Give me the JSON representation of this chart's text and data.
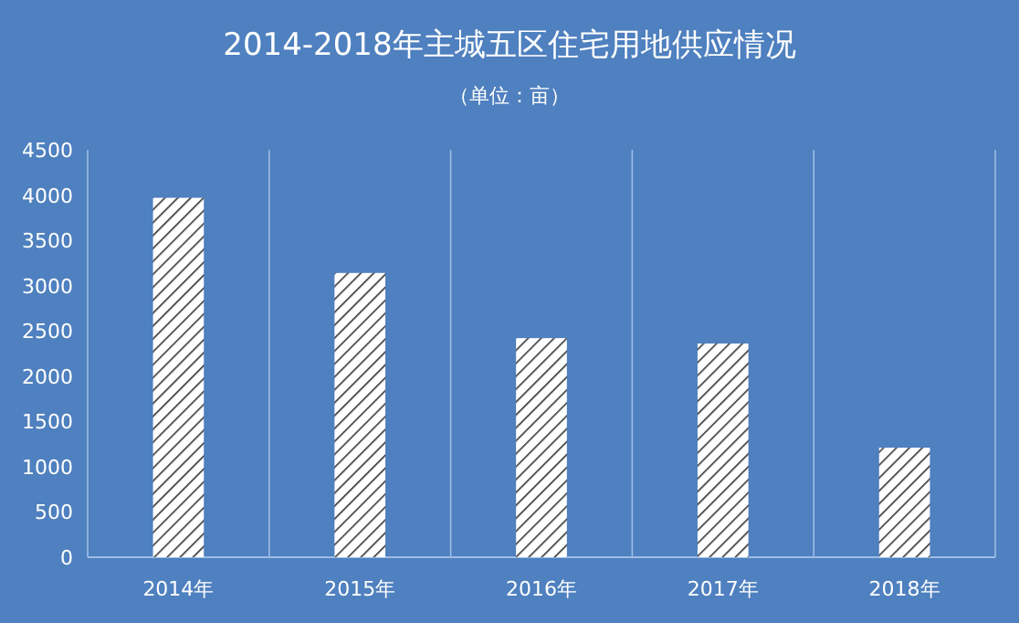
{
  "chart_data": {
    "type": "bar",
    "title": "2014-2018年主城五区住宅用地供应情况",
    "subtitle": "（单位：亩）",
    "categories": [
      "2014年",
      "2015年",
      "2016年",
      "2017年",
      "2018年"
    ],
    "values": [
      3970,
      3140,
      2420,
      2360,
      1210
    ],
    "color": "#ffffff",
    "ylim": [
      0,
      4500
    ],
    "yticks": [
      0,
      500,
      1000,
      1500,
      2000,
      2500,
      3000,
      3500,
      4000,
      4500
    ],
    "grid": "x"
  }
}
